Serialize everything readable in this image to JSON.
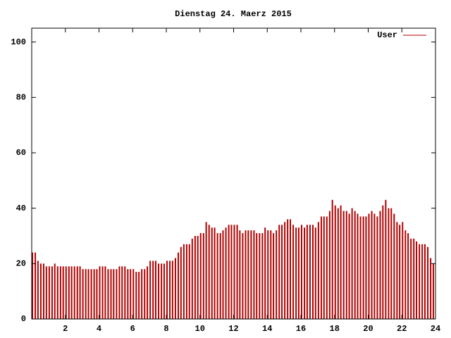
{
  "chart_data": {
    "type": "impulse",
    "title": "Dienstag 24. Maerz 2015",
    "series": [
      {
        "name": "User",
        "color": "#b00000",
        "x": [
          0,
          0.17,
          0.33,
          0.5,
          0.67,
          0.83,
          1,
          1.17,
          1.33,
          1.5,
          1.67,
          1.83,
          2,
          2.17,
          2.33,
          2.5,
          2.67,
          2.83,
          3,
          3.17,
          3.33,
          3.5,
          3.67,
          3.83,
          4,
          4.17,
          4.33,
          4.5,
          4.67,
          4.83,
          5,
          5.17,
          5.33,
          5.5,
          5.67,
          5.83,
          6,
          6.17,
          6.33,
          6.5,
          6.67,
          6.83,
          7,
          7.17,
          7.33,
          7.5,
          7.67,
          7.83,
          8,
          8.17,
          8.33,
          8.5,
          8.67,
          8.83,
          9,
          9.17,
          9.33,
          9.5,
          9.67,
          9.83,
          10,
          10.17,
          10.33,
          10.5,
          10.67,
          10.83,
          11,
          11.17,
          11.33,
          11.5,
          11.67,
          11.83,
          12,
          12.17,
          12.33,
          12.5,
          12.67,
          12.83,
          13,
          13.17,
          13.33,
          13.5,
          13.67,
          13.83,
          14,
          14.17,
          14.33,
          14.5,
          14.67,
          14.83,
          15,
          15.17,
          15.33,
          15.5,
          15.67,
          15.83,
          16,
          16.17,
          16.33,
          16.5,
          16.67,
          16.83,
          17,
          17.17,
          17.33,
          17.5,
          17.67,
          17.83,
          18,
          18.17,
          18.33,
          18.5,
          18.67,
          18.83,
          19,
          19.17,
          19.33,
          19.5,
          19.67,
          19.83,
          20,
          20.17,
          20.33,
          20.5,
          20.67,
          20.83,
          21,
          21.17,
          21.33,
          21.5,
          21.67,
          21.83,
          22,
          22.17,
          22.33,
          22.5,
          22.67,
          22.83,
          23,
          23.17,
          23.33,
          23.5,
          23.67,
          23.83
        ],
        "values": [
          24,
          24,
          21,
          20,
          20,
          19,
          19,
          19,
          20,
          19,
          19,
          19,
          19,
          19,
          19,
          19,
          19,
          19,
          18,
          18,
          18,
          18,
          18,
          18,
          19,
          19,
          19,
          18,
          18,
          18,
          18,
          19,
          19,
          19,
          18,
          18,
          18,
          17,
          17,
          18,
          18,
          19,
          21,
          21,
          21,
          20,
          20,
          20,
          21,
          21,
          21,
          22,
          24,
          26,
          27,
          27,
          27,
          29,
          30,
          30,
          31,
          31,
          35,
          34,
          33,
          33,
          31,
          31,
          32,
          33,
          34,
          34,
          34,
          34,
          32,
          31,
          32,
          32,
          32,
          32,
          31,
          31,
          31,
          33,
          32,
          32,
          31,
          32,
          34,
          34,
          35,
          36,
          36,
          34,
          33,
          33,
          34,
          33,
          34,
          34,
          34,
          33,
          35,
          37,
          37,
          37,
          39,
          43,
          41,
          40,
          41,
          39,
          39,
          38,
          40,
          39,
          38,
          37,
          37,
          37,
          38,
          39,
          38,
          37,
          39,
          41,
          43,
          40,
          40,
          38,
          35,
          34,
          35,
          32,
          31,
          29,
          29,
          28,
          27,
          27,
          27,
          26,
          22,
          20
        ]
      }
    ],
    "xlim": [
      0,
      24
    ],
    "xticks": [
      2,
      4,
      6,
      8,
      10,
      12,
      14,
      16,
      18,
      20,
      22,
      24
    ],
    "ylim": [
      0,
      105
    ],
    "yticks": [
      0,
      20,
      40,
      60,
      80,
      100
    ],
    "legend": "top right"
  }
}
